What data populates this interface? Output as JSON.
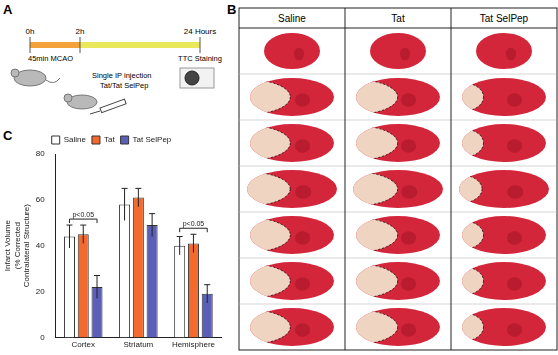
{
  "panel_labels": [
    "A",
    "B",
    "C"
  ],
  "timeline": {
    "times": [
      "0h",
      "2h",
      "24 Hours"
    ],
    "phase": "45min MCAO",
    "injection": [
      "Single IP injection",
      "Tat/Tat SelPep"
    ],
    "endpoint": "TTC Staining"
  },
  "slices": {
    "groups": [
      "Saline",
      "Tat",
      "Tat SelPep"
    ]
  },
  "chart_data": {
    "type": "bar",
    "y_label": [
      "Infarct Volume",
      "(% Corrected",
      "Contralateral Structure)"
    ],
    "categories": [
      "Cortex",
      "Striatum",
      "Hemisphere"
    ],
    "series": [
      {
        "name": "Saline",
        "color": "#ffffff",
        "values": [
          44,
          58,
          40
        ],
        "errors": [
          5,
          7,
          4
        ]
      },
      {
        "name": "Tat",
        "color": "#f26a2e",
        "values": [
          45,
          61,
          41
        ],
        "errors": [
          4,
          4,
          4
        ]
      },
      {
        "name": "Tat SelPep",
        "color": "#5b5fb8",
        "values": [
          22,
          49,
          19
        ],
        "errors": [
          5,
          5,
          4
        ]
      }
    ],
    "ylim": [
      0,
      80
    ],
    "yticks": [
      0,
      20,
      40,
      60,
      80
    ],
    "grid": false,
    "legend": "top",
    "annotations": [
      {
        "text": "p<0.05",
        "category": "Cortex",
        "from": "Saline",
        "to": "Tat SelPep"
      },
      {
        "text": "p<0.05",
        "category": "Hemisphere",
        "from": "Saline",
        "to": "Tat SelPep"
      }
    ]
  }
}
